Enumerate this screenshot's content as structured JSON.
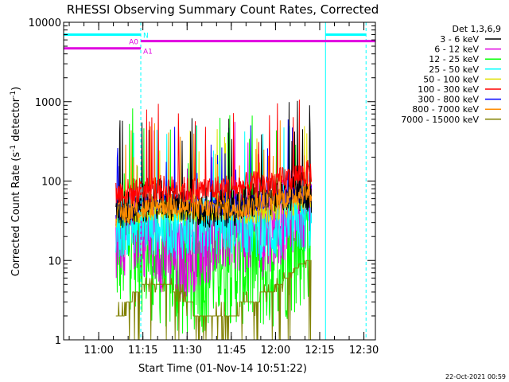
{
  "chart_data": {
    "type": "line",
    "title": "RHESSI Observing Summary Count Rates, Corrected",
    "xlabel": "Start Time (01-Nov-14 10:51:22)",
    "ylabel_main": "Corrected Count Rate (s",
    "ylabel_sup1": "-1",
    "ylabel_mid": " detector",
    "ylabel_sup2": "-1",
    "ylabel_end": ")",
    "y_scale": "log",
    "ylim": [
      1,
      10000
    ],
    "xlim_minutes": [
      -3.4,
      36.6
    ],
    "timestamp": "22-Oct-2021 00:59",
    "x_ticks": [
      {
        "label": "11:00",
        "value": 8.6
      },
      {
        "label": "11:15",
        "value": 23.6
      },
      {
        "label": "11:30",
        "value": 38.6
      },
      {
        "label": "11:45",
        "value": 53.6
      },
      {
        "label": "12:00",
        "value": 68.6
      },
      {
        "label": "12:15",
        "value": 83.6
      },
      {
        "label": "12:30",
        "value": 98.6
      }
    ],
    "y_ticks": [
      {
        "label": "1",
        "value": 1
      },
      {
        "label": "10",
        "value": 10
      },
      {
        "label": "100",
        "value": 100
      },
      {
        "label": "1000",
        "value": 1000
      },
      {
        "label": "10000",
        "value": 10000
      }
    ],
    "legend": {
      "header": "Det 1,3,6,9",
      "placement": "right"
    },
    "series": [
      {
        "name": "3 - 6 keV",
        "color": "#000000",
        "base": [
          40,
          45,
          50,
          55,
          60,
          58,
          55,
          50,
          48,
          46,
          45,
          47,
          50,
          55,
          60,
          65,
          70,
          75,
          75,
          70
        ],
        "spike": 1.8
      },
      {
        "name": "6 - 12 keV",
        "color": "#e000e0",
        "base": [
          20,
          22,
          25,
          20,
          15,
          12,
          10,
          12,
          15,
          18,
          20,
          25,
          25,
          22,
          20,
          25,
          30,
          40,
          50,
          55
        ],
        "spike": 3.5
      },
      {
        "name": "12 - 25 keV",
        "color": "#00ff00",
        "base": [
          15,
          18,
          20,
          15,
          12,
          10,
          8,
          8,
          9,
          10,
          12,
          12,
          12,
          11,
          10,
          10,
          12,
          15,
          20,
          25
        ],
        "spike": 8
      },
      {
        "name": "25 - 50 keV",
        "color": "#00ffff",
        "base": [
          25,
          28,
          30,
          30,
          28,
          27,
          26,
          25,
          26,
          28,
          30,
          30,
          28,
          26,
          25,
          24,
          25,
          28,
          30,
          32
        ],
        "spike": 2.5
      },
      {
        "name": "50 - 100 keV",
        "color": "#e0e000",
        "base": [
          35,
          38,
          40,
          42,
          45,
          44,
          42,
          40,
          40,
          42,
          45,
          44,
          42,
          40,
          40,
          42,
          45,
          50,
          55,
          58
        ],
        "spike": 1.4
      },
      {
        "name": "100 - 300 keV",
        "color": "#ff0000",
        "base": [
          70,
          72,
          75,
          78,
          80,
          80,
          78,
          76,
          76,
          78,
          80,
          82,
          85,
          88,
          90,
          95,
          100,
          110,
          120,
          125
        ],
        "spike": 1.5
      },
      {
        "name": "300 - 800 keV",
        "color": "#0000ff",
        "base": [
          40,
          42,
          45,
          50,
          55,
          55,
          52,
          50,
          48,
          47,
          46,
          46,
          48,
          50,
          55,
          60,
          62,
          65,
          68,
          70
        ],
        "spike": 1.3
      },
      {
        "name": "800 - 7000 keV",
        "color": "#ff8c00",
        "base": [
          38,
          40,
          42,
          45,
          50,
          50,
          48,
          46,
          45,
          44,
          44,
          45,
          46,
          48,
          50,
          55,
          60,
          65,
          70,
          72
        ],
        "spike": 1.4
      },
      {
        "name": "7000 - 15000 keV",
        "color": "#808000",
        "base": [
          1.5,
          2.5,
          4,
          5,
          5.5,
          5,
          4,
          3,
          2,
          1.5,
          1.5,
          2,
          2.5,
          3,
          3.5,
          4,
          5,
          7,
          9,
          10
        ],
        "spike": 1.2
      }
    ],
    "data_start_minutes": 3.3,
    "data_end_minutes": 28.4,
    "attenuator_bars": [
      {
        "label": "N",
        "color": "#00ffff",
        "y": 7000,
        "segments": [
          [
            -3.4,
            6.5
          ],
          [
            30.2,
            35.4
          ]
        ]
      },
      {
        "label": "A0",
        "color": "#e000e0",
        "y": 5800,
        "segments": [
          [
            6.5,
            36.6
          ]
        ]
      },
      {
        "label": "A1",
        "color": "#e000e0",
        "y": 4700,
        "segments": [
          [
            -3.4,
            6.5
          ]
        ]
      }
    ],
    "vertical_markers": [
      {
        "color": "#00ffff",
        "style": "solid",
        "x": -3.4
      },
      {
        "color": "#00ffff",
        "style": "dashed",
        "x": 6.5
      },
      {
        "color": "#00ffff",
        "style": "solid",
        "x": 30.2
      },
      {
        "color": "#00ffff",
        "style": "dashed",
        "x": 35.4
      }
    ]
  }
}
